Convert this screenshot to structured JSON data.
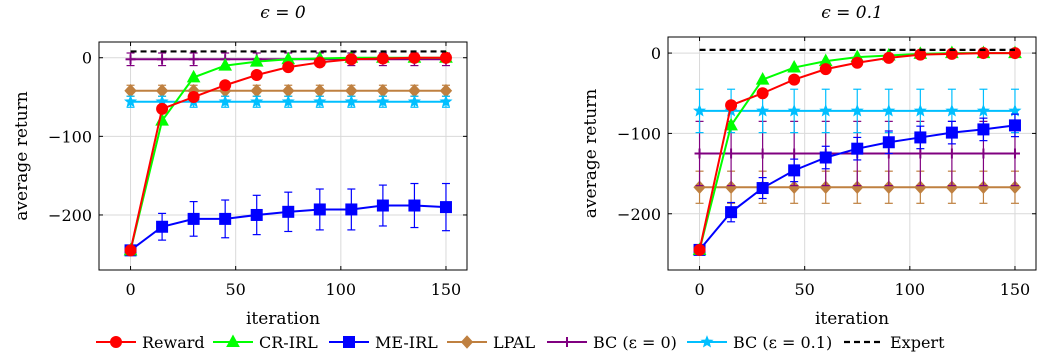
{
  "series_styles": {
    "Reward": {
      "color": "#ff0000",
      "marker": "circle"
    },
    "CR-IRL": {
      "color": "#00ff00",
      "marker": "triangle"
    },
    "ME-IRL": {
      "color": "#0000ff",
      "marker": "square"
    },
    "LPAL": {
      "color": "#bf8040",
      "marker": "diamond"
    },
    "BC (ε = 0)": {
      "color": "#800080",
      "marker": "plus"
    },
    "BC (ε = 0.1)": {
      "color": "#00bfff",
      "marker": "star"
    },
    "Expert": {
      "color": "#000000",
      "marker": "none",
      "dashed": true
    }
  },
  "legend": {
    "placement": "bottom",
    "entries": [
      "Reward",
      "CR-IRL",
      "ME-IRL",
      "LPAL",
      "BC (ε = 0)",
      "BC (ε = 0.1)",
      "Expert"
    ]
  },
  "chart_data": [
    {
      "type": "line",
      "title": "ϵ = 0",
      "xlabel": "iteration",
      "ylabel": "average return",
      "xlim": [
        -15,
        160
      ],
      "ylim": [
        -270,
        20
      ],
      "xticks": [
        0,
        50,
        100,
        150
      ],
      "yticks": [
        0,
        -100,
        -200
      ],
      "ytick_labels": [
        "0",
        "−100",
        "−200"
      ],
      "grid": true,
      "x": [
        0,
        15,
        30,
        45,
        60,
        75,
        90,
        105,
        120,
        135,
        150
      ],
      "series": [
        {
          "name": "Reward",
          "values": [
            -245,
            -65,
            -50,
            -35,
            -22,
            -12,
            -6,
            -2,
            -1,
            0,
            0
          ]
        },
        {
          "name": "CR-IRL",
          "values": [
            -245,
            -80,
            -25,
            -10,
            -5,
            -2,
            -1,
            0,
            0,
            0,
            0
          ]
        },
        {
          "name": "ME-IRL",
          "values": [
            -245,
            -215,
            -205,
            -205,
            -200,
            -196,
            -193,
            -193,
            -188,
            -188,
            -190
          ],
          "error": [
            0,
            17,
            22,
            24,
            25,
            25,
            26,
            26,
            26,
            28,
            30
          ]
        },
        {
          "name": "LPAL",
          "values": [
            -42,
            -42,
            -42,
            -42,
            -42,
            -42,
            -42,
            -42,
            -42,
            -42,
            -42
          ],
          "error": 7
        },
        {
          "name": "BC (ε = 0)",
          "values": [
            -2,
            -2,
            -2,
            -2,
            -2,
            -2,
            -2,
            -2,
            -2,
            -2,
            -2
          ],
          "error": 8
        },
        {
          "name": "BC (ε = 0.1)",
          "values": [
            -56,
            -56,
            -56,
            -56,
            -56,
            -56,
            -56,
            -56,
            -56,
            -56,
            -56
          ],
          "error": 7
        },
        {
          "name": "Expert",
          "values": [
            8,
            8,
            8,
            8,
            8,
            8,
            8,
            8,
            8,
            8,
            8
          ]
        }
      ]
    },
    {
      "type": "line",
      "title": "ϵ = 0.1",
      "xlabel": "iteration",
      "ylabel": "average return",
      "xlim": [
        -15,
        160
      ],
      "ylim": [
        -270,
        20
      ],
      "xticks": [
        0,
        50,
        100,
        150
      ],
      "yticks": [
        0,
        -100,
        -200
      ],
      "ytick_labels": [
        "0",
        "−100",
        "−200"
      ],
      "grid": true,
      "x": [
        0,
        15,
        30,
        45,
        60,
        75,
        90,
        105,
        120,
        135,
        150
      ],
      "series": [
        {
          "name": "Reward",
          "values": [
            -245,
            -65,
            -50,
            -33,
            -20,
            -12,
            -6,
            -2,
            -1,
            0,
            0
          ]
        },
        {
          "name": "CR-IRL",
          "values": [
            -245,
            -90,
            -33,
            -18,
            -10,
            -5,
            -3,
            -1,
            0,
            0,
            0
          ]
        },
        {
          "name": "ME-IRL",
          "values": [
            -245,
            -198,
            -168,
            -146,
            -130,
            -119,
            -111,
            -105,
            -99,
            -95,
            -90
          ],
          "error": [
            0,
            12,
            13,
            14,
            14,
            14,
            14,
            14,
            14,
            14,
            14
          ]
        },
        {
          "name": "LPAL",
          "values": [
            -167,
            -167,
            -167,
            -167,
            -167,
            -167,
            -167,
            -167,
            -167,
            -167,
            -167
          ],
          "error": 20
        },
        {
          "name": "BC (ε = 0)",
          "values": [
            -125,
            -125,
            -125,
            -125,
            -125,
            -125,
            -125,
            -125,
            -125,
            -125,
            -125
          ],
          "error": 40
        },
        {
          "name": "BC (ε = 0.1)",
          "values": [
            -72,
            -72,
            -72,
            -72,
            -72,
            -72,
            -72,
            -72,
            -72,
            -72,
            -72
          ],
          "error": 27
        },
        {
          "name": "Expert",
          "values": [
            4,
            4,
            4,
            4,
            4,
            4,
            4,
            4,
            4,
            4,
            4
          ]
        }
      ]
    }
  ]
}
